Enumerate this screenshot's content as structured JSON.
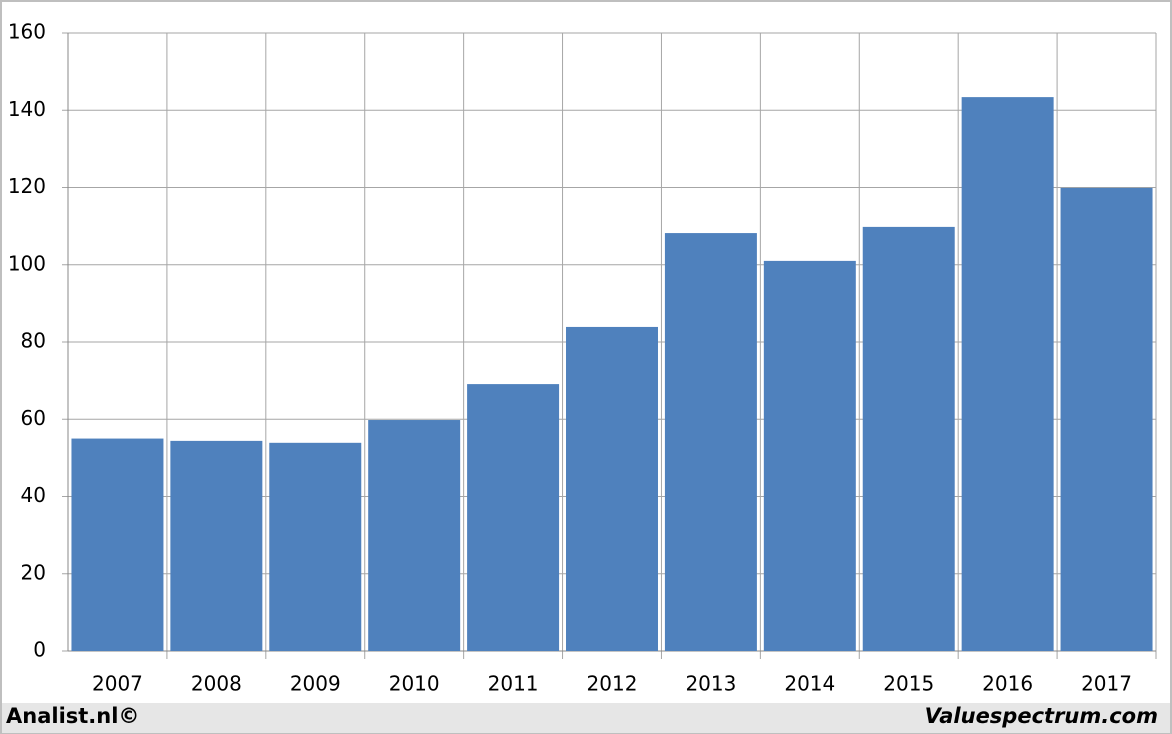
{
  "chart_data": {
    "type": "bar",
    "categories": [
      "2007",
      "2008",
      "2009",
      "2010",
      "2011",
      "2012",
      "2013",
      "2014",
      "2015",
      "2016",
      "2017"
    ],
    "values": [
      55,
      54.4,
      53.9,
      59.8,
      69.1,
      83.9,
      108.2,
      101,
      109.8,
      143.4,
      119.9
    ],
    "color": "#4f81bd",
    "ylim": [
      0,
      160
    ],
    "yticks": [
      0,
      20,
      40,
      60,
      80,
      100,
      120,
      140,
      160
    ],
    "grid": true,
    "footer_left": "Analist.nl©",
    "footer_right": "Valuespectrum.com"
  }
}
